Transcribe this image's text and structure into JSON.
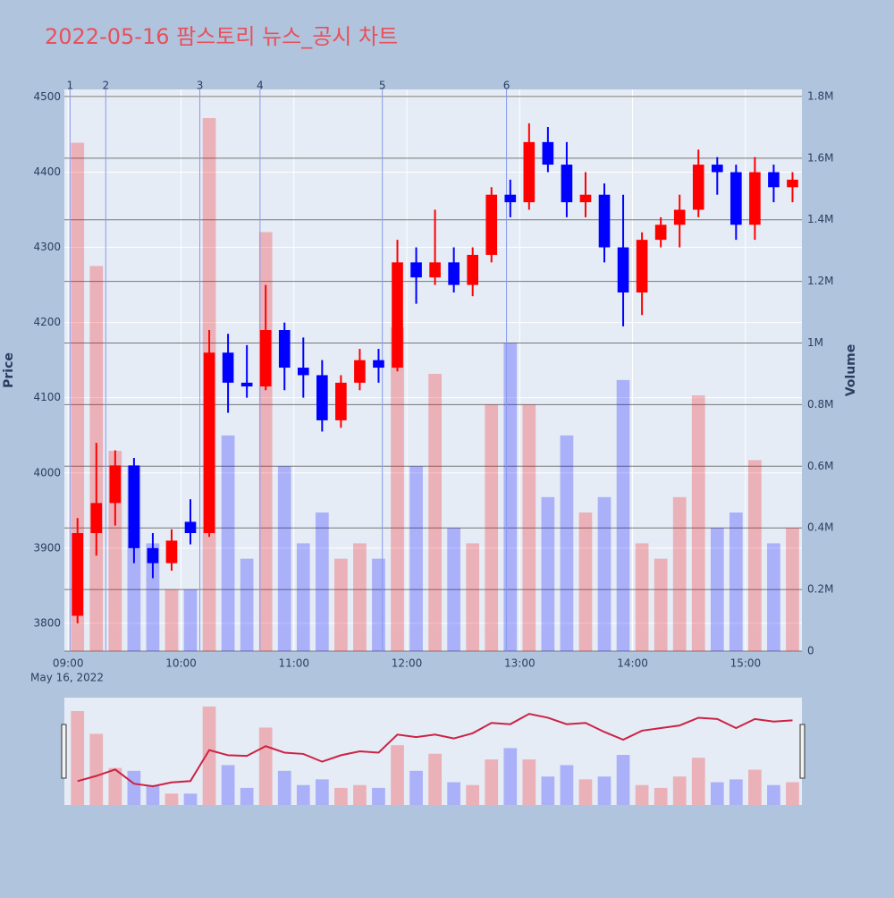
{
  "chart_data": {
    "type": "candlestick",
    "title": "2022-05-16 팜스토리 뉴스_공시 차트",
    "y_label": "Price",
    "y2_label": "Volume",
    "x_date_label": "May 16, 2022",
    "x": [
      "2022-05-16 09:00",
      "2022-05-16 09:10",
      "2022-05-16 09:20",
      "2022-05-16 09:30",
      "2022-05-16 09:40",
      "2022-05-16 09:50",
      "2022-05-16 10:00",
      "2022-05-16 10:10",
      "2022-05-16 10:20",
      "2022-05-16 10:30",
      "2022-05-16 10:40",
      "2022-05-16 10:50",
      "2022-05-16 11:00",
      "2022-05-16 11:10",
      "2022-05-16 11:20",
      "2022-05-16 11:30",
      "2022-05-16 11:40",
      "2022-05-16 11:50",
      "2022-05-16 12:00",
      "2022-05-16 12:10",
      "2022-05-16 12:20",
      "2022-05-16 12:30",
      "2022-05-16 12:40",
      "2022-05-16 12:50",
      "2022-05-16 13:00",
      "2022-05-16 13:10",
      "2022-05-16 13:20",
      "2022-05-16 13:30",
      "2022-05-16 13:40",
      "2022-05-16 13:50",
      "2022-05-16 14:00",
      "2022-05-16 14:10",
      "2022-05-16 14:20",
      "2022-05-16 14:30",
      "2022-05-16 14:40",
      "2022-05-16 14:50",
      "2022-05-16 15:00",
      "2022-05-16 15:10",
      "2022-05-16 15:20"
    ],
    "open": [
      3810,
      3920,
      3960,
      4010,
      3900,
      3880,
      3935,
      3920,
      4160,
      4120,
      4115,
      4190,
      4140,
      4130,
      4070,
      4120,
      4150,
      4140,
      4280,
      4260,
      4280,
      4250,
      4290,
      4370,
      4360,
      4440,
      4410,
      4360,
      4370,
      4300,
      4240,
      4310,
      4330,
      4350,
      4410,
      4400,
      4330,
      4400,
      4380
    ],
    "high": [
      3940,
      4040,
      4030,
      4020,
      3920,
      3925,
      3965,
      4190,
      4185,
      4170,
      4250,
      4200,
      4180,
      4150,
      4130,
      4165,
      4165,
      4310,
      4300,
      4350,
      4300,
      4300,
      4380,
      4390,
      4465,
      4460,
      4440,
      4400,
      4385,
      4370,
      4320,
      4340,
      4370,
      4430,
      4420,
      4410,
      4420,
      4410,
      4400
    ],
    "low": [
      3800,
      3890,
      3930,
      3880,
      3860,
      3870,
      3905,
      3915,
      4080,
      4100,
      4110,
      4110,
      4100,
      4055,
      4060,
      4110,
      4120,
      4135,
      4225,
      4250,
      4240,
      4235,
      4280,
      4340,
      4350,
      4400,
      4340,
      4340,
      4280,
      4195,
      4210,
      4300,
      4300,
      4340,
      4370,
      4310,
      4310,
      4360,
      4360
    ],
    "close": [
      3920,
      3960,
      4010,
      3900,
      3880,
      3910,
      3920,
      4160,
      4120,
      4115,
      4190,
      4140,
      4130,
      4070,
      4120,
      4150,
      4140,
      4280,
      4260,
      4280,
      4250,
      4290,
      4370,
      4360,
      4440,
      4410,
      4360,
      4370,
      4300,
      4240,
      4310,
      4330,
      4350,
      4410,
      4400,
      4330,
      4400,
      4380,
      4390
    ],
    "volume": [
      1650000,
      1250000,
      650000,
      600000,
      350000,
      200000,
      200000,
      1730000,
      700000,
      300000,
      1360000,
      600000,
      350000,
      450000,
      300000,
      350000,
      300000,
      1050000,
      600000,
      900000,
      400000,
      350000,
      800000,
      1000000,
      800000,
      500000,
      700000,
      450000,
      500000,
      880000,
      350000,
      300000,
      500000,
      830000,
      400000,
      450000,
      620000,
      350000,
      400000
    ],
    "increasing_color": "#ff0000",
    "decreasing_color": "#0000ff",
    "xlim": [
      "2022-05-16 08:58",
      "2022-05-16 15:30"
    ],
    "xticks": [
      {
        "value": "2022-05-16 09:00",
        "label": "09:00"
      },
      {
        "value": "2022-05-16 10:00",
        "label": "10:00"
      },
      {
        "value": "2022-05-16 11:00",
        "label": "11:00"
      },
      {
        "value": "2022-05-16 12:00",
        "label": "12:00"
      },
      {
        "value": "2022-05-16 13:00",
        "label": "13:00"
      },
      {
        "value": "2022-05-16 14:00",
        "label": "14:00"
      },
      {
        "value": "2022-05-16 15:00",
        "label": "15:00"
      }
    ],
    "ylim": [
      3763,
      4510
    ],
    "yticks": [
      3800,
      3900,
      4000,
      4100,
      4200,
      4300,
      4400,
      4500
    ],
    "y2lim": [
      0,
      1823000
    ],
    "y2ticks": [
      0,
      {
        "value": 200000,
        "label": "0.2M"
      },
      {
        "value": 400000,
        "label": "0.4M"
      },
      {
        "value": 600000,
        "label": "0.6M"
      },
      {
        "value": 800000,
        "label": "0.8M"
      },
      {
        "value": 1000000,
        "label": "1M"
      },
      {
        "value": 1200000,
        "label": "1.2M"
      },
      {
        "value": 1400000,
        "label": "1.4M"
      },
      {
        "value": 1600000,
        "label": "1.6M"
      },
      {
        "value": 1800000,
        "label": "1.8M"
      }
    ],
    "news": [
      {
        "x": "2022-05-16 09:01",
        "label": "1"
      },
      {
        "x": "2022-05-16 09:20",
        "label": "2"
      },
      {
        "x": "2022-05-16 10:10",
        "label": "3"
      },
      {
        "x": "2022-05-16 10:42",
        "label": "4"
      },
      {
        "x": "2022-05-16 11:47",
        "label": "5"
      },
      {
        "x": "2022-05-16 12:53",
        "label": "6"
      }
    ],
    "grid": true,
    "rangeslider": true
  }
}
